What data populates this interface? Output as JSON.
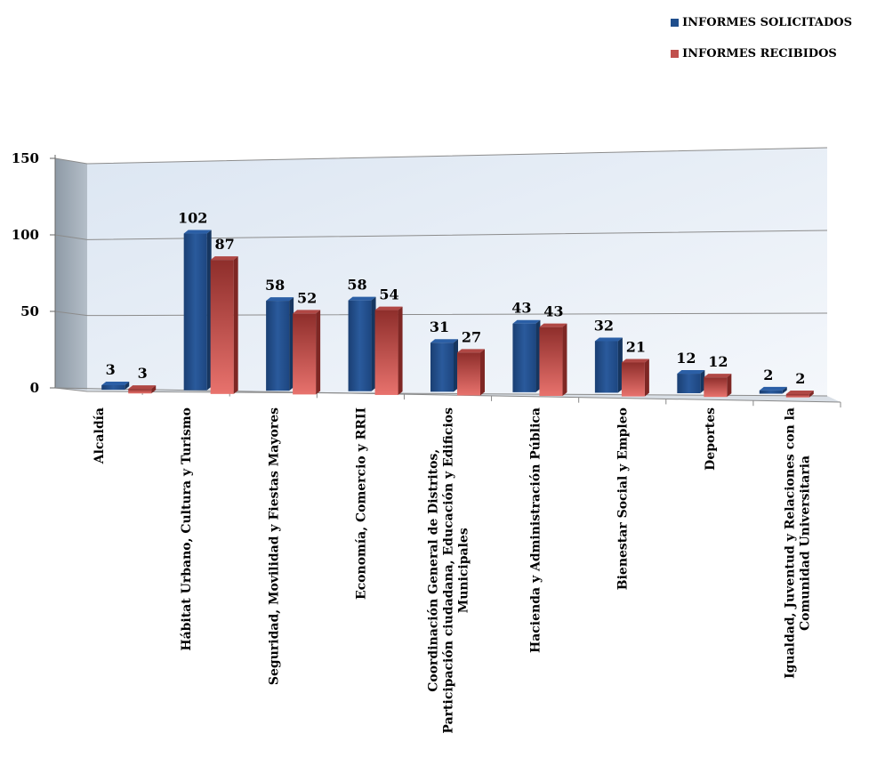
{
  "chart_data": {
    "type": "bar",
    "categories": [
      "Alcaldía",
      "Hábitat Urbano, Cultura y Turismo",
      "Seguridad, Movilidad y Fiestas Mayores",
      "Economía, Comercio y RRII",
      "Coordinación General de Distritos, Participación ciudadana, Educación y Edificios Municipales",
      "Hacienda y Administración Pública",
      "Bienestar Social y Empleo",
      "Deportes",
      "Igualdad, Juventud y Relaciones con la Comunidad Universitaria"
    ],
    "category_label_lines": [
      [
        "Alcaldía"
      ],
      [
        "Hábitat Urbano, Cultura y Turismo"
      ],
      [
        "Seguridad, Movilidad y Fiestas Mayores"
      ],
      [
        "Economía, Comercio y RRII"
      ],
      [
        "Coordinación General de Distritos,",
        "Participación ciudadana, Educación y Edificios",
        "Municipales"
      ],
      [
        "Hacienda y Administración Pública"
      ],
      [
        "Bienestar Social y Empleo"
      ],
      [
        "Deportes"
      ],
      [
        "Igualdad, Juventud y Relaciones con la",
        "Comunidad Universitaria"
      ]
    ],
    "series": [
      {
        "name": "INFORMES SOLICITADOS",
        "color": "#1F4E8C",
        "values": [
          3,
          102,
          58,
          58,
          31,
          43,
          32,
          12,
          2
        ]
      },
      {
        "name": "INFORMES RECIBIDOS",
        "color": "#C0504D",
        "values": [
          3,
          87,
          52,
          54,
          27,
          43,
          21,
          12,
          2
        ]
      }
    ],
    "yticks": [
      "0",
      "50",
      "100",
      "150"
    ],
    "ylim": [
      0,
      150
    ],
    "grid": true,
    "legend_position": "top-right",
    "title": "",
    "xlabel": "",
    "ylabel": ""
  }
}
